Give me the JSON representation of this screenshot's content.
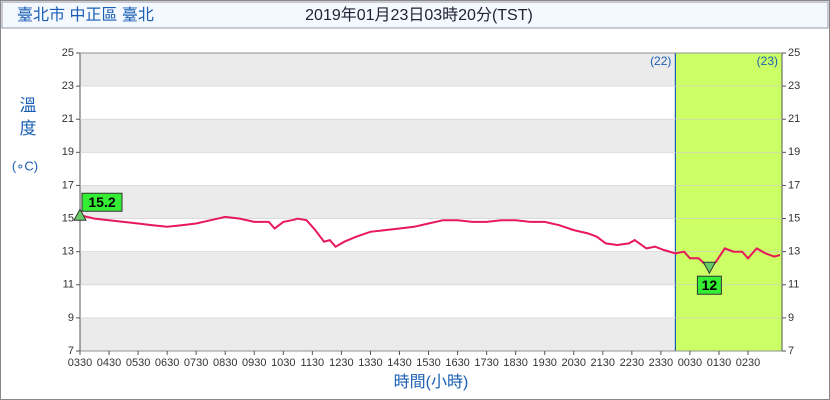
{
  "header": {
    "location": "臺北市 中正區 臺北",
    "time": "2019年01月23日03時20分(TST)"
  },
  "chart_data": {
    "type": "line",
    "ylabel": "溫度",
    "yunit": "(∘C)",
    "xlabel": "時間(小時)",
    "x": [
      3.5,
      4.0,
      4.5,
      5.0,
      5.5,
      6.0,
      6.5,
      7.0,
      7.5,
      8.0,
      8.5,
      9.0,
      9.5,
      10.0,
      10.2,
      10.5,
      10.8,
      11.0,
      11.3,
      11.6,
      11.9,
      12.1,
      12.3,
      12.6,
      13.0,
      13.5,
      14.0,
      14.5,
      15.0,
      15.5,
      16.0,
      16.5,
      17.0,
      17.5,
      18.0,
      18.5,
      19.0,
      19.5,
      20.0,
      20.5,
      21.0,
      21.3,
      21.6,
      22.0,
      22.4,
      22.6,
      23.0,
      23.3,
      23.6,
      24.0,
      24.3,
      24.5,
      24.8,
      25.17,
      25.4,
      25.7,
      26.0,
      26.3,
      26.5,
      26.8,
      27.1,
      27.4,
      27.6
    ],
    "values": [
      15.2,
      15.0,
      14.9,
      14.8,
      14.7,
      14.6,
      14.5,
      14.6,
      14.7,
      14.9,
      15.1,
      15.0,
      14.8,
      14.8,
      14.4,
      14.8,
      14.9,
      15.0,
      14.9,
      14.3,
      13.6,
      13.7,
      13.3,
      13.6,
      13.9,
      14.2,
      14.3,
      14.4,
      14.5,
      14.7,
      14.9,
      14.9,
      14.8,
      14.8,
      14.9,
      14.9,
      14.8,
      14.8,
      14.6,
      14.3,
      14.1,
      13.9,
      13.5,
      13.4,
      13.5,
      13.7,
      13.2,
      13.3,
      13.1,
      12.9,
      13.0,
      12.6,
      12.6,
      12.0,
      12.4,
      13.2,
      13.0,
      13.0,
      12.6,
      13.2,
      12.9,
      12.7,
      12.8
    ],
    "color": "#e8185a",
    "xlim": [
      3.5,
      27.67
    ],
    "xticks": [
      {
        "value": 3.5,
        "label": "0330"
      },
      {
        "value": 4.5,
        "label": "0430"
      },
      {
        "value": 5.5,
        "label": "0530"
      },
      {
        "value": 6.5,
        "label": "0630"
      },
      {
        "value": 7.5,
        "label": "0730"
      },
      {
        "value": 8.5,
        "label": "0830"
      },
      {
        "value": 9.5,
        "label": "0930"
      },
      {
        "value": 10.5,
        "label": "1030"
      },
      {
        "value": 11.5,
        "label": "1130"
      },
      {
        "value": 12.5,
        "label": "1230"
      },
      {
        "value": 13.5,
        "label": "1330"
      },
      {
        "value": 14.5,
        "label": "1430"
      },
      {
        "value": 15.5,
        "label": "1530"
      },
      {
        "value": 16.5,
        "label": "1630"
      },
      {
        "value": 17.5,
        "label": "1730"
      },
      {
        "value": 18.5,
        "label": "1830"
      },
      {
        "value": 19.5,
        "label": "1930"
      },
      {
        "value": 20.5,
        "label": "2030"
      },
      {
        "value": 21.5,
        "label": "2130"
      },
      {
        "value": 22.5,
        "label": "2230"
      },
      {
        "value": 23.5,
        "label": "2330"
      },
      {
        "value": 24.5,
        "label": "0030"
      },
      {
        "value": 25.5,
        "label": "0130"
      },
      {
        "value": 26.5,
        "label": "0230"
      }
    ],
    "ylim": [
      7,
      25
    ],
    "yticks": [
      7,
      9,
      11,
      13,
      15,
      17,
      19,
      21,
      23,
      25
    ],
    "band_color": "#ebebeb",
    "day_boundary": 24,
    "day_labels": [
      "(22)",
      "(23)"
    ],
    "highlight_color": "#ccff66",
    "annotations": [
      {
        "x": 3.5,
        "y": 15.2,
        "label": "15.2",
        "kind": "max"
      },
      {
        "x": 25.17,
        "y": 12,
        "label": "12",
        "kind": "min"
      }
    ]
  }
}
